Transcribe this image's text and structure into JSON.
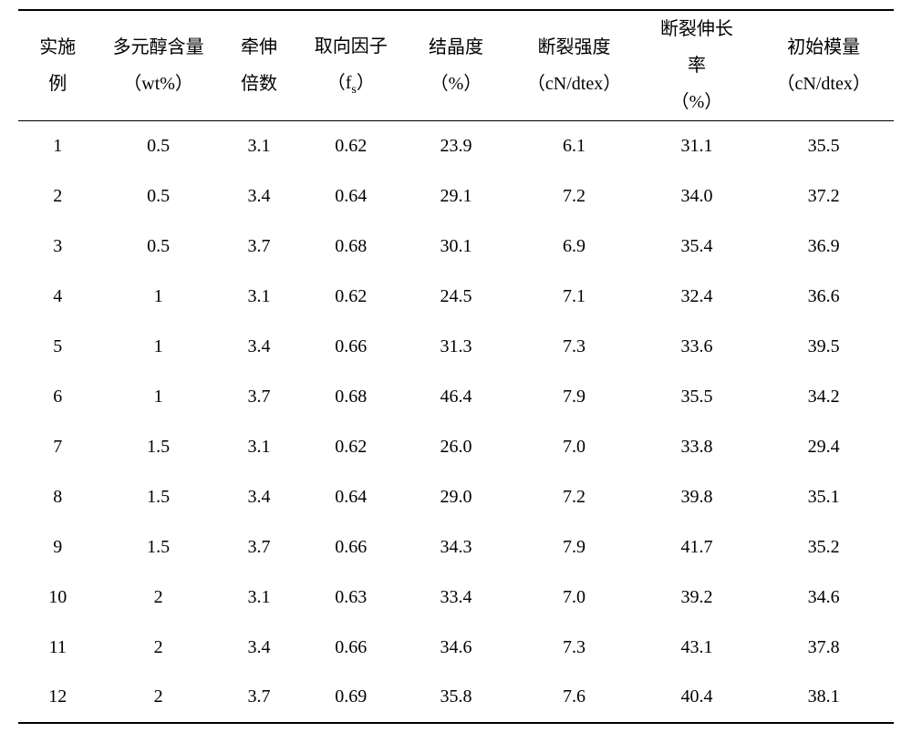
{
  "table": {
    "background_color": "#ffffff",
    "text_color": "#000000",
    "border_color": "#000000",
    "header_fontsize": 20,
    "body_fontsize": 20,
    "columns": [
      {
        "line1": "实施",
        "line2": "例"
      },
      {
        "line1": "多元醇含量",
        "line2": "（wt%）"
      },
      {
        "line1": "牵伸",
        "line2": "倍数"
      },
      {
        "line1": "取向因子",
        "line2_prefix": "（f",
        "line2_sub": "s",
        "line2_suffix": "）"
      },
      {
        "line1": "结晶度",
        "line2": "（%）"
      },
      {
        "line1": "断裂强度",
        "line2": "（cN/dtex）"
      },
      {
        "line1": "断裂伸长",
        "line2": "率",
        "line3": "（%）"
      },
      {
        "line1": "初始模量",
        "line2": "（cN/dtex）"
      }
    ],
    "rows": [
      [
        "1",
        "0.5",
        "3.1",
        "0.62",
        "23.9",
        "6.1",
        "31.1",
        "35.5"
      ],
      [
        "2",
        "0.5",
        "3.4",
        "0.64",
        "29.1",
        "7.2",
        "34.0",
        "37.2"
      ],
      [
        "3",
        "0.5",
        "3.7",
        "0.68",
        "30.1",
        "6.9",
        "35.4",
        "36.9"
      ],
      [
        "4",
        "1",
        "3.1",
        "0.62",
        "24.5",
        "7.1",
        "32.4",
        "36.6"
      ],
      [
        "5",
        "1",
        "3.4",
        "0.66",
        "31.3",
        "7.3",
        "33.6",
        "39.5"
      ],
      [
        "6",
        "1",
        "3.7",
        "0.68",
        "46.4",
        "7.9",
        "35.5",
        "34.2"
      ],
      [
        "7",
        "1.5",
        "3.1",
        "0.62",
        "26.0",
        "7.0",
        "33.8",
        "29.4"
      ],
      [
        "8",
        "1.5",
        "3.4",
        "0.64",
        "29.0",
        "7.2",
        "39.8",
        "35.1"
      ],
      [
        "9",
        "1.5",
        "3.7",
        "0.66",
        "34.3",
        "7.9",
        "41.7",
        "35.2"
      ],
      [
        "10",
        "2",
        "3.1",
        "0.63",
        "33.4",
        "7.0",
        "39.2",
        "34.6"
      ],
      [
        "11",
        "2",
        "3.4",
        "0.66",
        "34.6",
        "7.3",
        "43.1",
        "37.8"
      ],
      [
        "12",
        "2",
        "3.7",
        "0.69",
        "35.8",
        "7.6",
        "40.4",
        "38.1"
      ]
    ]
  }
}
